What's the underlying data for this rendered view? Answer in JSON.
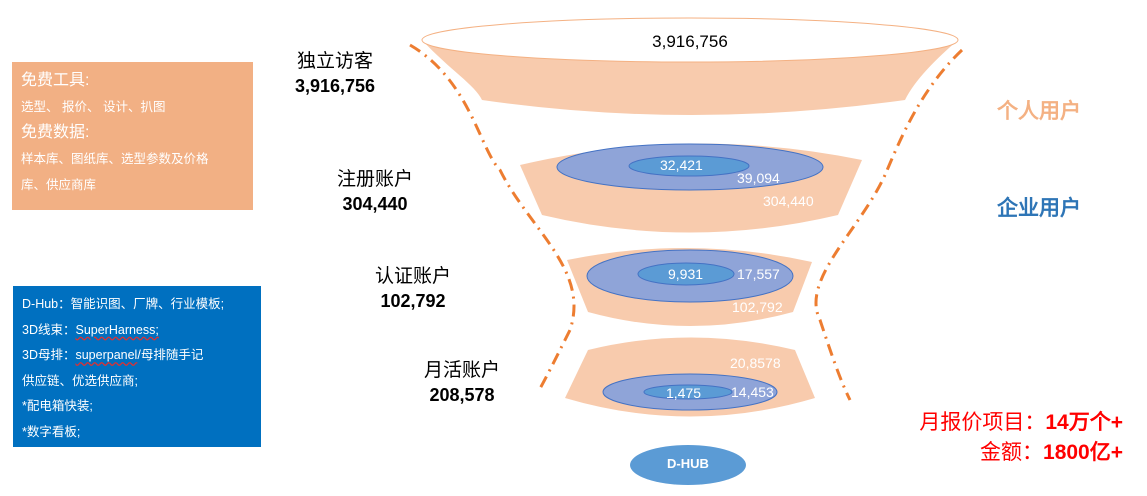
{
  "free_box": {
    "tools_title": "免费工具:",
    "tools": "选型、 报价、 设计、扒图",
    "data_title": "免费数据:",
    "data_line1": "样本库、图纸库、选型参数及价格",
    "data_line2": "库、供应商库"
  },
  "enterprise_box": {
    "line1": "D-Hub：智能识图、厂牌、行业模板;",
    "line2_prefix": "3D线束：",
    "line2_link": "SuperHarness;",
    "line3_prefix": "3D母排：",
    "line3_link": "superpanel",
    "line3_suffix": "/母排随手记",
    "line4": "供应链、优选供应商;",
    "line5": "*配电箱快装;",
    "line6": "*数字看板;"
  },
  "funnel": [
    {
      "label": "独立访客",
      "value": "3,916,756",
      "inner": "3,916,756"
    },
    {
      "label": "注册账户",
      "value": "304,440",
      "inner_core": "32,421",
      "inner_mid": "39,094",
      "inner_outer": "304,440"
    },
    {
      "label": "认证账户",
      "value": "102,792",
      "inner_core": "9,931",
      "inner_mid": "17,557",
      "inner_outer": "102,792"
    },
    {
      "label": "月活账户",
      "value": "208,578",
      "inner_core": "1,475",
      "inner_mid": "14,453",
      "inner_outer": "20,8578"
    }
  ],
  "segments": {
    "personal": "个人用户",
    "enterprise": "企业用户"
  },
  "hub": "D-HUB",
  "stats": {
    "line1_label": "月报价项目：",
    "line1_value": "14万个+",
    "line2_label": "金额：",
    "line2_value": "1800亿+"
  },
  "colors": {
    "funnel": "#f8cbad",
    "ring": "#8fa4d8",
    "core": "#5b9bd5",
    "personal": "#f4b183",
    "enterprise": "#2e75b6",
    "dash": "#ed7d31",
    "stats": "#ff0000"
  }
}
